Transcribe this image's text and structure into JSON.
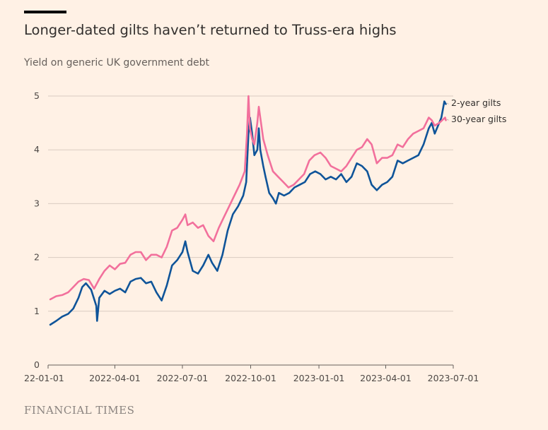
{
  "header": {
    "title": "Longer-dated gilts haven’t returned to Truss-era highs",
    "subtitle": "Yield on generic UK government debt"
  },
  "footer": {
    "source": "FINANCIAL TIMES"
  },
  "chart_data": {
    "type": "line",
    "title": "Longer-dated gilts haven’t returned to Truss-era highs",
    "subtitle": "Yield on generic UK government debt",
    "xlabel": "",
    "ylabel": "",
    "xlim": [
      "2022-01-01",
      "2023-07-01"
    ],
    "ylim": [
      0,
      5
    ],
    "grid": true,
    "legend": "right",
    "x_ticks": [
      "2022-01-01",
      "2022-04-01",
      "2022-07-01",
      "2022-10-01",
      "2023-01-01",
      "2023-04-01",
      "2023-07-01"
    ],
    "x_tick_labels": [
      "22-01-01",
      "2022-04-01",
      "2022-07-01",
      "2022-10-01",
      "2023-01-01",
      "2023-04-01",
      "2023-07-01"
    ],
    "y_ticks": [
      0,
      1,
      2,
      3,
      4,
      5
    ],
    "y_tick_labels": [
      "0",
      "1",
      "2",
      "3",
      "4",
      "5"
    ],
    "series": [
      {
        "name": "2-year gilts",
        "color": "#0f5499",
        "points": [
          [
            "2022-01-04",
            0.75
          ],
          [
            "2022-01-12",
            0.82
          ],
          [
            "2022-01-20",
            0.9
          ],
          [
            "2022-01-28",
            0.95
          ],
          [
            "2022-02-04",
            1.05
          ],
          [
            "2022-02-11",
            1.25
          ],
          [
            "2022-02-16",
            1.45
          ],
          [
            "2022-02-21",
            1.52
          ],
          [
            "2022-02-28",
            1.4
          ],
          [
            "2022-03-07",
            1.1
          ],
          [
            "2022-03-08",
            0.82
          ],
          [
            "2022-03-11",
            1.25
          ],
          [
            "2022-03-18",
            1.38
          ],
          [
            "2022-03-25",
            1.32
          ],
          [
            "2022-04-01",
            1.38
          ],
          [
            "2022-04-08",
            1.42
          ],
          [
            "2022-04-15",
            1.35
          ],
          [
            "2022-04-22",
            1.55
          ],
          [
            "2022-04-29",
            1.6
          ],
          [
            "2022-05-06",
            1.62
          ],
          [
            "2022-05-13",
            1.52
          ],
          [
            "2022-05-20",
            1.55
          ],
          [
            "2022-05-27",
            1.35
          ],
          [
            "2022-06-03",
            1.2
          ],
          [
            "2022-06-10",
            1.48
          ],
          [
            "2022-06-17",
            1.85
          ],
          [
            "2022-06-24",
            1.95
          ],
          [
            "2022-07-01",
            2.1
          ],
          [
            "2022-07-05",
            2.3
          ],
          [
            "2022-07-08",
            2.1
          ],
          [
            "2022-07-15",
            1.75
          ],
          [
            "2022-07-22",
            1.7
          ],
          [
            "2022-07-29",
            1.85
          ],
          [
            "2022-08-05",
            2.05
          ],
          [
            "2022-08-10",
            1.9
          ],
          [
            "2022-08-17",
            1.75
          ],
          [
            "2022-08-24",
            2.05
          ],
          [
            "2022-08-31",
            2.5
          ],
          [
            "2022-09-07",
            2.8
          ],
          [
            "2022-09-14",
            2.95
          ],
          [
            "2022-09-21",
            3.15
          ],
          [
            "2022-09-25",
            3.4
          ],
          [
            "2022-09-28",
            4.3
          ],
          [
            "2022-09-30",
            4.6
          ],
          [
            "2022-10-03",
            4.3
          ],
          [
            "2022-10-06",
            3.9
          ],
          [
            "2022-10-10",
            4.0
          ],
          [
            "2022-10-12",
            4.4
          ],
          [
            "2022-10-14",
            4.0
          ],
          [
            "2022-10-18",
            3.7
          ],
          [
            "2022-10-21",
            3.5
          ],
          [
            "2022-10-26",
            3.2
          ],
          [
            "2022-10-31",
            3.1
          ],
          [
            "2022-11-04",
            3.0
          ],
          [
            "2022-11-08",
            3.2
          ],
          [
            "2022-11-15",
            3.15
          ],
          [
            "2022-11-22",
            3.2
          ],
          [
            "2022-11-29",
            3.3
          ],
          [
            "2022-12-06",
            3.35
          ],
          [
            "2022-12-13",
            3.4
          ],
          [
            "2022-12-20",
            3.55
          ],
          [
            "2022-12-27",
            3.6
          ],
          [
            "2023-01-03",
            3.55
          ],
          [
            "2023-01-10",
            3.45
          ],
          [
            "2023-01-17",
            3.5
          ],
          [
            "2023-01-24",
            3.45
          ],
          [
            "2023-01-31",
            3.55
          ],
          [
            "2023-02-07",
            3.4
          ],
          [
            "2023-02-14",
            3.5
          ],
          [
            "2023-02-21",
            3.75
          ],
          [
            "2023-02-28",
            3.7
          ],
          [
            "2023-03-07",
            3.6
          ],
          [
            "2023-03-13",
            3.35
          ],
          [
            "2023-03-20",
            3.25
          ],
          [
            "2023-03-27",
            3.35
          ],
          [
            "2023-04-03",
            3.4
          ],
          [
            "2023-04-10",
            3.5
          ],
          [
            "2023-04-17",
            3.8
          ],
          [
            "2023-04-24",
            3.75
          ],
          [
            "2023-05-01",
            3.8
          ],
          [
            "2023-05-08",
            3.85
          ],
          [
            "2023-05-15",
            3.9
          ],
          [
            "2023-05-22",
            4.1
          ],
          [
            "2023-05-29",
            4.4
          ],
          [
            "2023-06-02",
            4.5
          ],
          [
            "2023-06-06",
            4.3
          ],
          [
            "2023-06-12",
            4.5
          ],
          [
            "2023-06-15",
            4.6
          ],
          [
            "2023-06-19",
            4.9
          ],
          [
            "2023-06-21",
            4.85
          ]
        ]
      },
      {
        "name": "30-year gilts",
        "color": "#f2709c",
        "points": [
          [
            "2022-01-04",
            1.22
          ],
          [
            "2022-01-12",
            1.28
          ],
          [
            "2022-01-20",
            1.3
          ],
          [
            "2022-01-28",
            1.35
          ],
          [
            "2022-02-04",
            1.45
          ],
          [
            "2022-02-11",
            1.55
          ],
          [
            "2022-02-18",
            1.6
          ],
          [
            "2022-02-25",
            1.58
          ],
          [
            "2022-03-04",
            1.42
          ],
          [
            "2022-03-11",
            1.6
          ],
          [
            "2022-03-18",
            1.75
          ],
          [
            "2022-03-25",
            1.85
          ],
          [
            "2022-04-01",
            1.78
          ],
          [
            "2022-04-08",
            1.88
          ],
          [
            "2022-04-15",
            1.9
          ],
          [
            "2022-04-22",
            2.05
          ],
          [
            "2022-04-29",
            2.1
          ],
          [
            "2022-05-06",
            2.1
          ],
          [
            "2022-05-13",
            1.95
          ],
          [
            "2022-05-20",
            2.05
          ],
          [
            "2022-05-27",
            2.05
          ],
          [
            "2022-06-03",
            2.0
          ],
          [
            "2022-06-10",
            2.2
          ],
          [
            "2022-06-17",
            2.5
          ],
          [
            "2022-06-24",
            2.55
          ],
          [
            "2022-07-01",
            2.7
          ],
          [
            "2022-07-05",
            2.8
          ],
          [
            "2022-07-08",
            2.6
          ],
          [
            "2022-07-15",
            2.65
          ],
          [
            "2022-07-22",
            2.55
          ],
          [
            "2022-07-29",
            2.6
          ],
          [
            "2022-08-05",
            2.4
          ],
          [
            "2022-08-12",
            2.3
          ],
          [
            "2022-08-19",
            2.55
          ],
          [
            "2022-08-26",
            2.75
          ],
          [
            "2022-09-02",
            2.95
          ],
          [
            "2022-09-09",
            3.15
          ],
          [
            "2022-09-16",
            3.35
          ],
          [
            "2022-09-23",
            3.6
          ],
          [
            "2022-09-26",
            4.3
          ],
          [
            "2022-09-28",
            5.0
          ],
          [
            "2022-09-30",
            4.4
          ],
          [
            "2022-10-03",
            4.2
          ],
          [
            "2022-10-06",
            4.1
          ],
          [
            "2022-10-10",
            4.5
          ],
          [
            "2022-10-12",
            4.8
          ],
          [
            "2022-10-14",
            4.6
          ],
          [
            "2022-10-18",
            4.2
          ],
          [
            "2022-10-24",
            3.9
          ],
          [
            "2022-10-31",
            3.6
          ],
          [
            "2022-11-07",
            3.5
          ],
          [
            "2022-11-14",
            3.4
          ],
          [
            "2022-11-21",
            3.3
          ],
          [
            "2022-11-28",
            3.35
          ],
          [
            "2022-12-05",
            3.45
          ],
          [
            "2022-12-12",
            3.55
          ],
          [
            "2022-12-19",
            3.8
          ],
          [
            "2022-12-26",
            3.9
          ],
          [
            "2023-01-03",
            3.95
          ],
          [
            "2023-01-10",
            3.85
          ],
          [
            "2023-01-17",
            3.7
          ],
          [
            "2023-01-24",
            3.65
          ],
          [
            "2023-01-31",
            3.6
          ],
          [
            "2023-02-07",
            3.7
          ],
          [
            "2023-02-14",
            3.85
          ],
          [
            "2023-02-21",
            4.0
          ],
          [
            "2023-02-28",
            4.05
          ],
          [
            "2023-03-07",
            4.2
          ],
          [
            "2023-03-13",
            4.1
          ],
          [
            "2023-03-20",
            3.75
          ],
          [
            "2023-03-27",
            3.85
          ],
          [
            "2023-04-03",
            3.85
          ],
          [
            "2023-04-10",
            3.9
          ],
          [
            "2023-04-17",
            4.1
          ],
          [
            "2023-04-24",
            4.05
          ],
          [
            "2023-05-01",
            4.2
          ],
          [
            "2023-05-08",
            4.3
          ],
          [
            "2023-05-15",
            4.35
          ],
          [
            "2023-05-22",
            4.4
          ],
          [
            "2023-05-29",
            4.6
          ],
          [
            "2023-06-02",
            4.55
          ],
          [
            "2023-06-06",
            4.45
          ],
          [
            "2023-06-12",
            4.5
          ],
          [
            "2023-06-16",
            4.55
          ],
          [
            "2023-06-20",
            4.6
          ],
          [
            "2023-06-21",
            4.55
          ]
        ]
      }
    ]
  }
}
